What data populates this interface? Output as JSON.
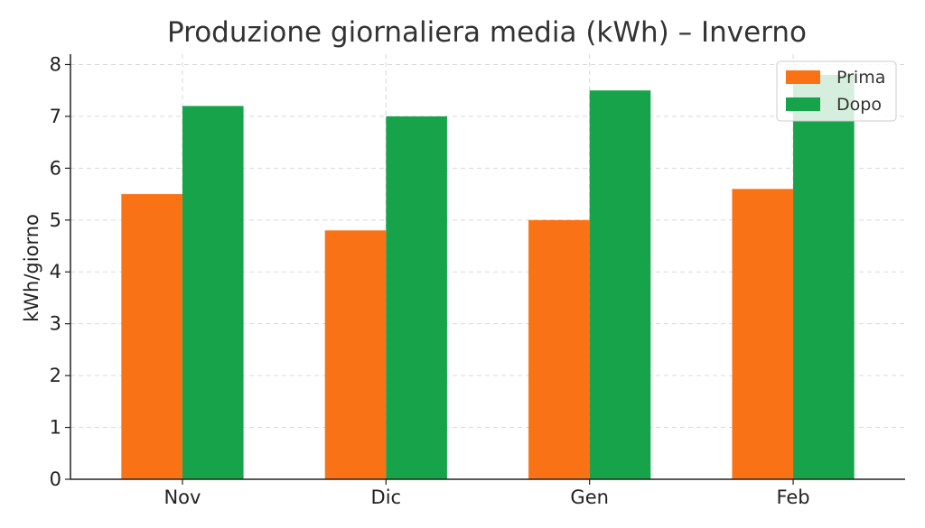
{
  "chart_data": {
    "type": "bar",
    "title": "Produzione giornaliera media (kWh) – Inverno",
    "xlabel": "",
    "ylabel": "kWh/giorno",
    "categories": [
      "Nov",
      "Dic",
      "Gen",
      "Feb"
    ],
    "series": [
      {
        "name": "Prima",
        "values": [
          5.5,
          4.8,
          5.0,
          5.6
        ],
        "color": "#f97316"
      },
      {
        "name": "Dopo",
        "values": [
          7.2,
          7.0,
          7.5,
          7.8
        ],
        "color": "#16a34a"
      }
    ],
    "ylim": [
      0,
      8.2
    ],
    "yticks": [
      "0",
      "1",
      "2",
      "3",
      "4",
      "5",
      "6",
      "7",
      "8"
    ],
    "grid": true,
    "legend_position": "top-right"
  }
}
